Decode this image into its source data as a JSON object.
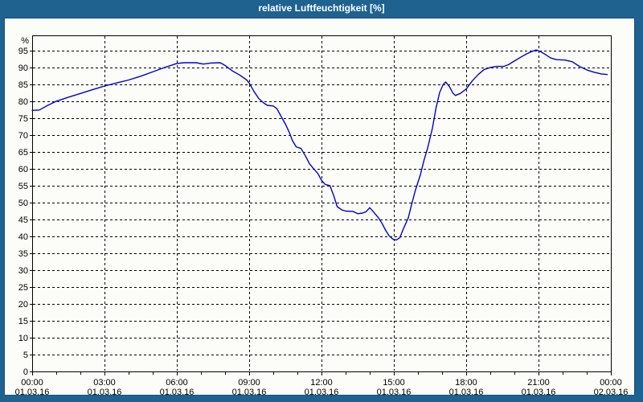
{
  "header": {
    "title": "relative Luftfeuchtigkeit [%]"
  },
  "colors": {
    "frame": "#1F618F",
    "frame_edge": "#155381",
    "content_bg": "#FCFDF8",
    "plot_border": "#000000",
    "grid": "#000000",
    "axis_text": "#000000",
    "title_text": "#FFFFFF",
    "line": "#0000CC"
  },
  "chart_data": {
    "type": "line",
    "title": "relative Luftfeuchtigkeit [%]",
    "xlabel": "",
    "ylabel": "%",
    "xlim_hours": [
      0,
      24
    ],
    "ylim": [
      0,
      99.5
    ],
    "grid": "dashed",
    "legend": "none",
    "y_ticks": [
      0,
      5,
      10,
      15,
      20,
      25,
      30,
      35,
      40,
      45,
      50,
      55,
      60,
      65,
      70,
      75,
      80,
      85,
      90,
      95
    ],
    "x_minor_tick_every_hours": 1,
    "x_major_ticks": [
      {
        "hour": 0,
        "time": "00:00",
        "date": "01.03.16"
      },
      {
        "hour": 3,
        "time": "03:00",
        "date": "01.03.16"
      },
      {
        "hour": 6,
        "time": "06:00",
        "date": "01.03.16"
      },
      {
        "hour": 9,
        "time": "09:00",
        "date": "01.03.16"
      },
      {
        "hour": 12,
        "time": "12:00",
        "date": "01.03.16"
      },
      {
        "hour": 15,
        "time": "15:00",
        "date": "01.03.16"
      },
      {
        "hour": 18,
        "time": "18:00",
        "date": "01.03.16"
      },
      {
        "hour": 21,
        "time": "21:00",
        "date": "01.03.16"
      },
      {
        "hour": 24,
        "time": "00:00",
        "date": "02.03.16"
      }
    ],
    "series": [
      {
        "name": "relative Luftfeuchtigkeit",
        "unit": "%",
        "color": "#0000CC",
        "points": [
          [
            0,
            77.3
          ],
          [
            0.3,
            77.4
          ],
          [
            0.6,
            78.6
          ],
          [
            1,
            80
          ],
          [
            1.5,
            81.2
          ],
          [
            2,
            82.3
          ],
          [
            2.5,
            83.4
          ],
          [
            3,
            84.5
          ],
          [
            3.5,
            85.4
          ],
          [
            4,
            86.3
          ],
          [
            4.5,
            87.4
          ],
          [
            5,
            88.7
          ],
          [
            5.5,
            90
          ],
          [
            6,
            91.2
          ],
          [
            6.3,
            91.4
          ],
          [
            6.8,
            91.4
          ],
          [
            7.1,
            91
          ],
          [
            7.4,
            91.3
          ],
          [
            7.8,
            91.4
          ],
          [
            8,
            90.6
          ],
          [
            8.3,
            89
          ],
          [
            8.6,
            87.8
          ],
          [
            8.9,
            86.3
          ],
          [
            9,
            85.4
          ],
          [
            9.2,
            82.9
          ],
          [
            9.4,
            80.8
          ],
          [
            9.6,
            79.5
          ],
          [
            9.75,
            78.8
          ],
          [
            10,
            78.6
          ],
          [
            10.15,
            77.8
          ],
          [
            10.35,
            75.2
          ],
          [
            10.5,
            73.3
          ],
          [
            10.65,
            71
          ],
          [
            10.8,
            68.3
          ],
          [
            10.95,
            66.5
          ],
          [
            11.15,
            66
          ],
          [
            11.35,
            63.6
          ],
          [
            11.5,
            61.5
          ],
          [
            11.7,
            59.8
          ],
          [
            11.85,
            58.6
          ],
          [
            12,
            56.6
          ],
          [
            12.15,
            55.4
          ],
          [
            12.35,
            55
          ],
          [
            12.5,
            52.2
          ],
          [
            12.65,
            48.8
          ],
          [
            12.85,
            47.8
          ],
          [
            13,
            47.5
          ],
          [
            13.3,
            47.4
          ],
          [
            13.5,
            46.7
          ],
          [
            13.7,
            46.9
          ],
          [
            13.85,
            47.3
          ],
          [
            14,
            48.5
          ],
          [
            14.15,
            47.3
          ],
          [
            14.35,
            45.6
          ],
          [
            14.5,
            44
          ],
          [
            14.65,
            41.9
          ],
          [
            14.8,
            40.2
          ],
          [
            14.95,
            39.2
          ],
          [
            15.1,
            38.9
          ],
          [
            15.25,
            39.6
          ],
          [
            15.4,
            42.3
          ],
          [
            15.6,
            45.5
          ],
          [
            15.75,
            49.8
          ],
          [
            15.9,
            53.8
          ],
          [
            16.1,
            58.2
          ],
          [
            16.25,
            62.5
          ],
          [
            16.4,
            66.1
          ],
          [
            16.6,
            72
          ],
          [
            16.75,
            78
          ],
          [
            16.9,
            82.6
          ],
          [
            17.05,
            85
          ],
          [
            17.15,
            85.7
          ],
          [
            17.3,
            84.4
          ],
          [
            17.45,
            82.4
          ],
          [
            17.55,
            81.7
          ],
          [
            17.75,
            82.3
          ],
          [
            18,
            83.6
          ],
          [
            18.25,
            86
          ],
          [
            18.5,
            87.9
          ],
          [
            18.75,
            89.4
          ],
          [
            19,
            90
          ],
          [
            19.25,
            90.3
          ],
          [
            19.55,
            90.3
          ],
          [
            19.75,
            90.8
          ],
          [
            20,
            91.9
          ],
          [
            20.25,
            93
          ],
          [
            20.5,
            94
          ],
          [
            20.75,
            94.8
          ],
          [
            20.9,
            95.2
          ],
          [
            21.05,
            94.8
          ],
          [
            21.25,
            94
          ],
          [
            21.5,
            92.8
          ],
          [
            21.75,
            92.3
          ],
          [
            22.1,
            92.2
          ],
          [
            22.4,
            91.7
          ],
          [
            22.7,
            90.3
          ],
          [
            23,
            89.3
          ],
          [
            23.3,
            88.6
          ],
          [
            23.6,
            88.1
          ],
          [
            23.85,
            87.9
          ]
        ]
      }
    ]
  }
}
